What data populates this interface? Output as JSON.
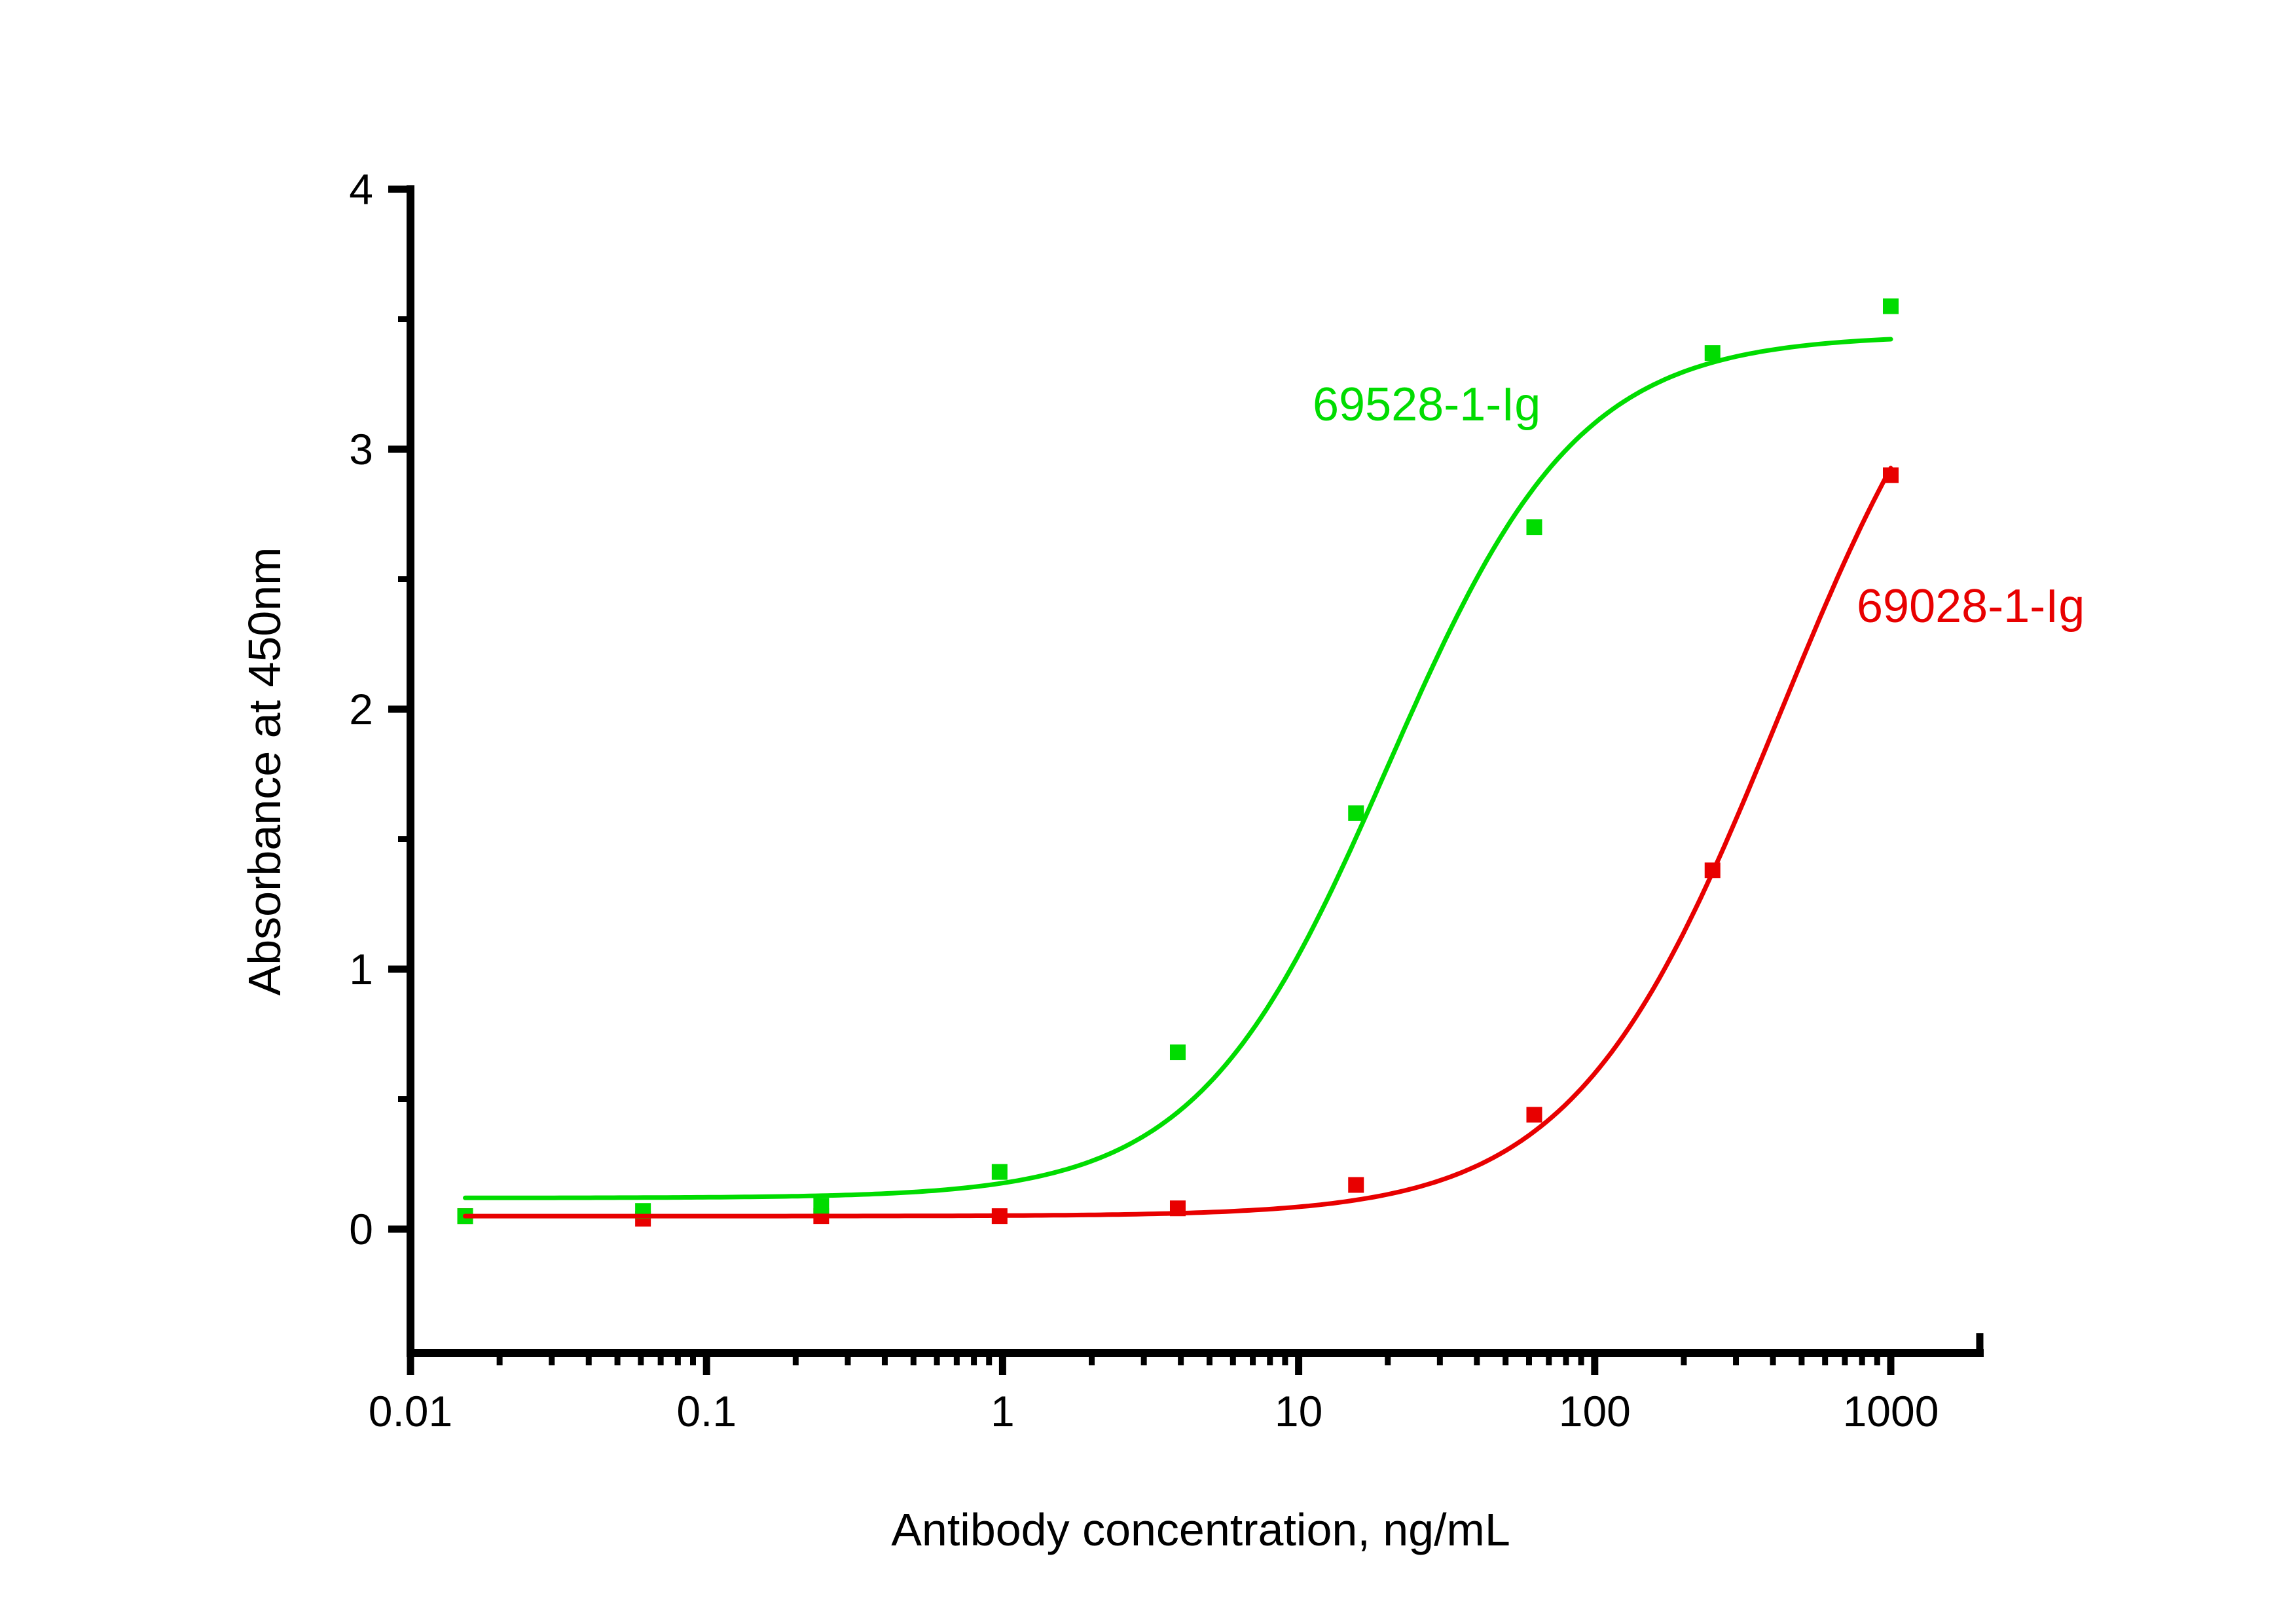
{
  "figure": {
    "background": "#ffffff"
  },
  "chart_data": {
    "type": "scatter",
    "title": "",
    "xlabel": "Antibody concentration, ng/mL",
    "ylabel": "Absorbance at 450nm",
    "x_scale": "log",
    "x_range": [
      0.01,
      2000
    ],
    "x_major_ticks": [
      0.01,
      0.1,
      1,
      10,
      100,
      1000
    ],
    "x_major_tick_labels": [
      "0.01",
      "0.1",
      "1",
      "10",
      "100",
      "1000"
    ],
    "x_minor_ticks": "2-9 per decade (log spacing)",
    "y_major_ticks": [
      0,
      1,
      2,
      3,
      4
    ],
    "y_major_tick_labels": [
      "0",
      "1",
      "2",
      "3",
      "4"
    ],
    "y_minor_ticks": [
      0.5,
      1.5,
      2.5,
      3.5
    ],
    "ylim": [
      -0.48,
      4
    ],
    "grid": false,
    "axis_color": "#000000",
    "legend_position": "inline annotations near curves",
    "series": [
      {
        "name": "69528-1-Ig",
        "color": "#00DC00",
        "marker": "square",
        "x": [
          0.0153,
          0.061,
          0.244,
          0.977,
          3.906,
          15.625,
          62.5,
          250,
          1000
        ],
        "y": [
          0.05,
          0.07,
          0.09,
          0.22,
          0.68,
          1.6,
          2.7,
          3.37,
          3.55
        ],
        "fit_curve": {
          "model": "4PL",
          "bottom": 0.12,
          "top": 3.44,
          "ec50": 20,
          "hill": 1.35,
          "x_start": 0.0153,
          "x_end": 1000
        }
      },
      {
        "name": "69028-1-Ig",
        "color": "#E80000",
        "marker": "square",
        "x": [
          0.0153,
          0.061,
          0.244,
          0.977,
          3.906,
          15.625,
          62.5,
          250,
          1000
        ],
        "y": [
          0.05,
          0.04,
          0.05,
          0.05,
          0.08,
          0.17,
          0.44,
          1.38,
          2.9
        ],
        "fit_curve": {
          "model": "4PL",
          "bottom": 0.05,
          "top": 3.9,
          "ec50": 420,
          "hill": 1.25,
          "x_start": 0.0153,
          "x_end": 1000
        }
      }
    ]
  }
}
